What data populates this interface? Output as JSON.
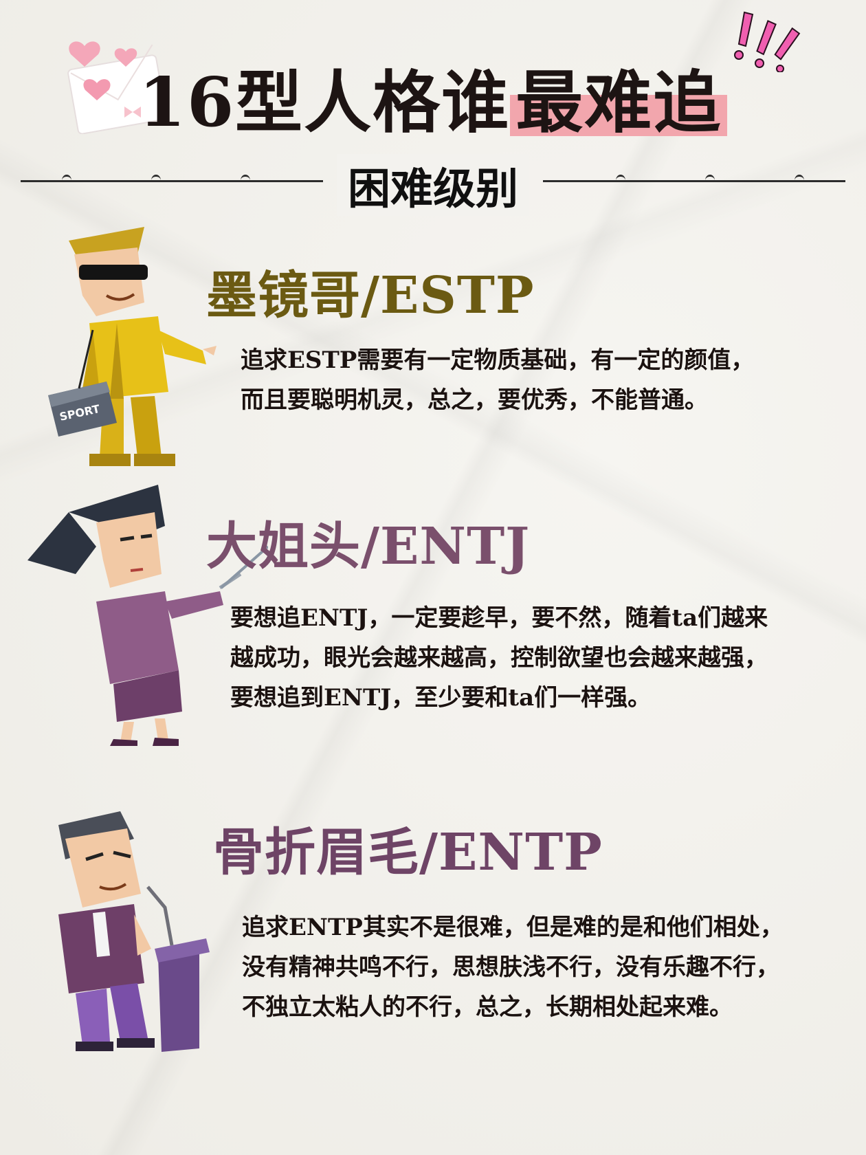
{
  "title": {
    "prefix": "16型人格谁",
    "highlight": "最难追"
  },
  "subtitle": "困难级别",
  "sections": [
    {
      "title": "墨镜哥/ESTP",
      "lines": [
        "追求ESTP需要有一定物质基础，有一定的颜值，",
        "而且要聪明机灵，总之，要优秀，不能普通。"
      ],
      "bag_label": "SPORT",
      "color": "#6b5a12"
    },
    {
      "title": "大姐头/ENTJ",
      "lines": [
        "要想追ENTJ，一定要趁早，要不然，随着ta们越来",
        "越成功，眼光会越来越高，控制欲望也会越来越强，",
        "要想追到ENTJ，至少要和ta们一样强。"
      ],
      "color": "#7a4f6c"
    },
    {
      "title": "骨折眉毛/ENTP",
      "lines": [
        "追求ENTP其实不是很难，但是难的是和他们相处，",
        "没有精神共鸣不行，思想肤浅不行，没有乐趣不行，",
        "不独立太粘人的不行，总之，长期相处起来难。"
      ],
      "color": "#6e4466"
    }
  ]
}
